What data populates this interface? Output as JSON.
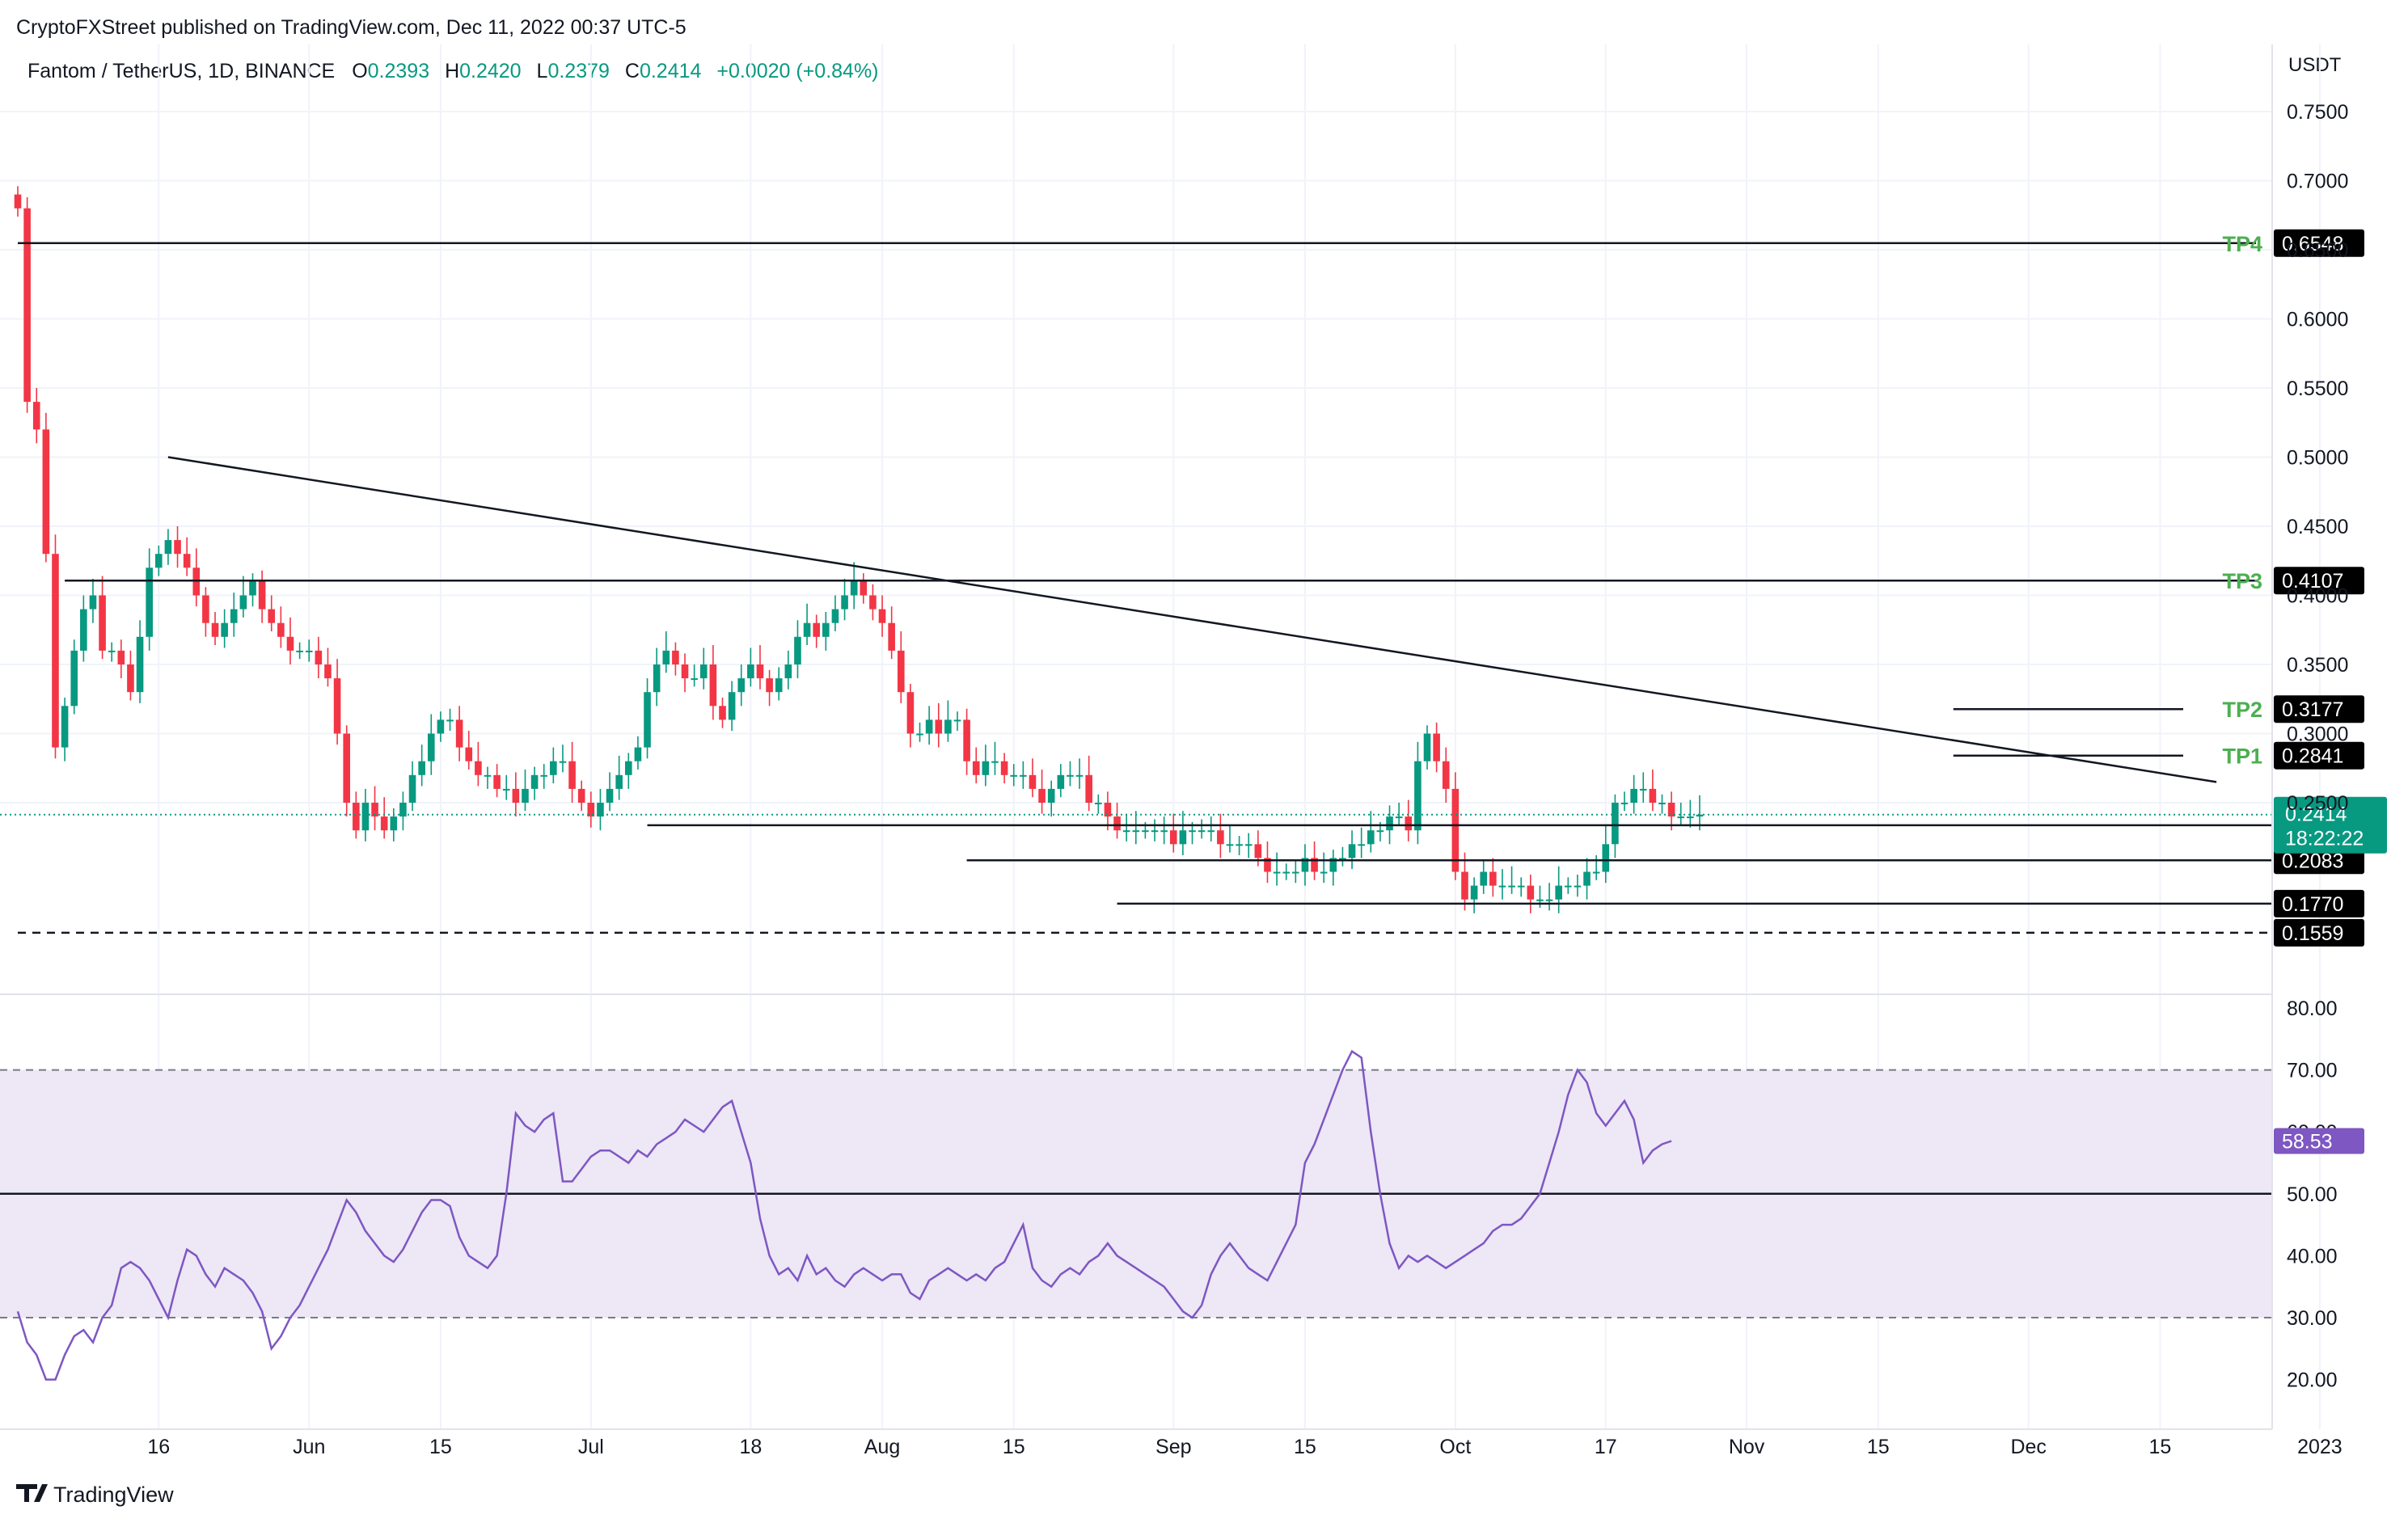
{
  "header": {
    "published": "CryptoFXStreet published on TradingView.com, Dec 11, 2022 00:37 UTC-5",
    "symbol": "Fantom / TetherUS, 1D, BINANCE",
    "o_label": "O",
    "o_value": "0.2393",
    "h_label": "H",
    "h_value": "0.2420",
    "l_label": "L",
    "l_value": "0.2379",
    "c_label": "C",
    "c_value": "0.2414",
    "change": "+0.0020 (+0.84%)"
  },
  "footer": {
    "brand": "TradingView"
  },
  "colors": {
    "up": "#089981",
    "down": "#f23645",
    "rsi": "#7e57c2",
    "rsi_band": "#ede7f6",
    "tp_green": "#4caf50",
    "current_badge": "#089981"
  },
  "chart_data": [
    {
      "type": "candlestick",
      "title": "Fantom / TetherUS, 1D, BINANCE",
      "ylabel": "USDT",
      "ylim": [
        0.1,
        0.78
      ],
      "y_ticks": [
        "0.7500",
        "0.7000",
        "0.6500",
        "0.6000",
        "0.5500",
        "0.5000",
        "0.4500",
        "0.4000",
        "0.3500",
        "0.3000",
        "0.2500"
      ],
      "x_ticks": [
        "16",
        "Jun",
        "15",
        "Jul",
        "18",
        "Aug",
        "15",
        "Sep",
        "15",
        "Oct",
        "17",
        "Nov",
        "15",
        "Dec",
        "15",
        "2023"
      ],
      "x_tick_days": [
        15,
        31,
        45,
        61,
        78,
        92,
        106,
        123,
        137,
        153,
        169,
        184,
        198,
        214,
        228,
        245
      ],
      "current_price": "0.2414",
      "countdown": "18:22:22",
      "levels": [
        {
          "name": "TP4",
          "value": 0.6548,
          "label": "0.6548",
          "tag": "TP4",
          "day_from": 0,
          "style": "solid"
        },
        {
          "name": "TP3",
          "value": 0.4107,
          "label": "0.4107",
          "tag": "TP3",
          "day_from": 5,
          "style": "solid"
        },
        {
          "name": "TP2",
          "value": 0.3177,
          "label": "0.3177",
          "tag": "TP2",
          "day_from": 206,
          "style": "solid"
        },
        {
          "name": "TP1",
          "value": 0.2841,
          "label": "0.2841",
          "tag": "TP1",
          "day_from": 206,
          "style": "solid"
        },
        {
          "name": "S1",
          "value": 0.2337,
          "label": "0.2337",
          "tag": "",
          "day_from": 67,
          "style": "solid"
        },
        {
          "name": "S2",
          "value": 0.2083,
          "label": "0.2083",
          "tag": "",
          "day_from": 101,
          "style": "solid"
        },
        {
          "name": "S3",
          "value": 0.177,
          "label": "0.1770",
          "tag": "",
          "day_from": 117,
          "style": "solid"
        },
        {
          "name": "S4",
          "value": 0.1559,
          "label": "0.1559",
          "tag": "",
          "day_from": 0,
          "style": "dashed"
        }
      ],
      "trendline": {
        "from": [
          16,
          0.5
        ],
        "to": [
          234,
          0.265
        ]
      },
      "close_series": [
        0.68,
        0.54,
        0.52,
        0.43,
        0.29,
        0.32,
        0.36,
        0.39,
        0.4,
        0.36,
        0.36,
        0.35,
        0.33,
        0.37,
        0.42,
        0.43,
        0.44,
        0.43,
        0.42,
        0.4,
        0.38,
        0.37,
        0.38,
        0.39,
        0.4,
        0.41,
        0.39,
        0.38,
        0.37,
        0.36,
        0.36,
        0.36,
        0.35,
        0.34,
        0.3,
        0.25,
        0.23,
        0.25,
        0.24,
        0.23,
        0.24,
        0.25,
        0.27,
        0.28,
        0.3,
        0.31,
        0.31,
        0.29,
        0.28,
        0.27,
        0.27,
        0.26,
        0.26,
        0.25,
        0.26,
        0.27,
        0.27,
        0.28,
        0.28,
        0.26,
        0.25,
        0.24,
        0.25,
        0.26,
        0.27,
        0.28,
        0.29,
        0.33,
        0.35,
        0.36,
        0.35,
        0.34,
        0.34,
        0.35,
        0.32,
        0.31,
        0.33,
        0.34,
        0.35,
        0.34,
        0.33,
        0.34,
        0.35,
        0.37,
        0.38,
        0.37,
        0.38,
        0.39,
        0.4,
        0.41,
        0.4,
        0.39,
        0.38,
        0.36,
        0.33,
        0.3,
        0.3,
        0.31,
        0.3,
        0.31,
        0.31,
        0.28,
        0.27,
        0.28,
        0.28,
        0.27,
        0.27,
        0.27,
        0.26,
        0.25,
        0.26,
        0.27,
        0.27,
        0.27,
        0.25,
        0.25,
        0.24,
        0.23,
        0.23,
        0.23,
        0.23,
        0.23,
        0.23,
        0.22,
        0.23,
        0.23,
        0.23,
        0.23,
        0.22,
        0.22,
        0.22,
        0.22,
        0.21,
        0.2,
        0.2,
        0.2,
        0.2,
        0.21,
        0.2,
        0.2,
        0.21,
        0.21,
        0.22,
        0.22,
        0.23,
        0.23,
        0.24,
        0.24,
        0.23,
        0.28,
        0.3,
        0.28,
        0.26,
        0.2,
        0.18,
        0.19,
        0.2,
        0.19,
        0.19,
        0.19,
        0.19,
        0.18,
        0.18,
        0.18,
        0.19,
        0.19,
        0.19,
        0.2,
        0.2,
        0.22,
        0.25,
        0.25,
        0.26,
        0.26,
        0.25,
        0.25,
        0.24,
        0.24,
        0.24,
        0.2414
      ],
      "start_day": 0
    },
    {
      "type": "line",
      "title": "RSI",
      "ylim": [
        15,
        85
      ],
      "y_ticks": [
        "80.00",
        "70.00",
        "60.00",
        "50.00",
        "40.00",
        "30.00",
        "20.00"
      ],
      "band": [
        30,
        70
      ],
      "midline": 50,
      "current_value": "58.53",
      "values": [
        31,
        26,
        24,
        20,
        20,
        24,
        27,
        28,
        26,
        30,
        32,
        38,
        39,
        38,
        36,
        33,
        30,
        36,
        41,
        40,
        37,
        35,
        38,
        37,
        36,
        34,
        31,
        25,
        27,
        30,
        32,
        35,
        38,
        41,
        45,
        49,
        47,
        44,
        42,
        40,
        39,
        41,
        44,
        47,
        49,
        49,
        48,
        43,
        40,
        39,
        38,
        40,
        50,
        63,
        61,
        60,
        62,
        63,
        52,
        52,
        54,
        56,
        57,
        57,
        56,
        55,
        57,
        56,
        58,
        59,
        60,
        62,
        61,
        60,
        62,
        64,
        65,
        60,
        55,
        46,
        40,
        37,
        38,
        36,
        40,
        37,
        38,
        36,
        35,
        37,
        38,
        37,
        36,
        37,
        37,
        34,
        33,
        36,
        37,
        38,
        37,
        36,
        37,
        36,
        38,
        39,
        42,
        45,
        38,
        36,
        35,
        37,
        38,
        37,
        39,
        40,
        42,
        40,
        39,
        38,
        37,
        36,
        35,
        33,
        31,
        30,
        32,
        37,
        40,
        42,
        40,
        38,
        37,
        36,
        39,
        42,
        45,
        55,
        58,
        62,
        66,
        70,
        73,
        72,
        60,
        50,
        42,
        38,
        40,
        39,
        40,
        39,
        38,
        39,
        40,
        41,
        42,
        44,
        45,
        45,
        46,
        48,
        50,
        55,
        60,
        66,
        70,
        68,
        63,
        61,
        63,
        65,
        62,
        55,
        57,
        58,
        58.53
      ]
    }
  ]
}
